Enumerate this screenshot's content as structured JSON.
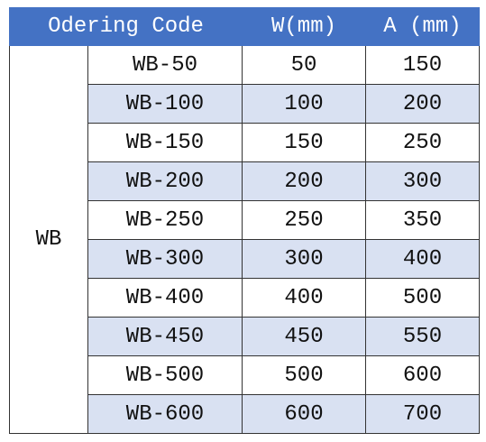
{
  "table": {
    "header": [
      "Odering Code",
      "W(mm)",
      "A (mm)"
    ],
    "group": "WB",
    "rows": [
      [
        "WB-50",
        "50",
        "150"
      ],
      [
        "WB-100",
        "100",
        "200"
      ],
      [
        "WB-150",
        "150",
        "250"
      ],
      [
        "WB-200",
        "200",
        "300"
      ],
      [
        "WB-250",
        "250",
        "350"
      ],
      [
        "WB-300",
        "300",
        "400"
      ],
      [
        "WB-400",
        "400",
        "500"
      ],
      [
        "WB-450",
        "450",
        "550"
      ],
      [
        "WB-500",
        "500",
        "600"
      ],
      [
        "WB-600",
        "600",
        "700"
      ]
    ]
  }
}
